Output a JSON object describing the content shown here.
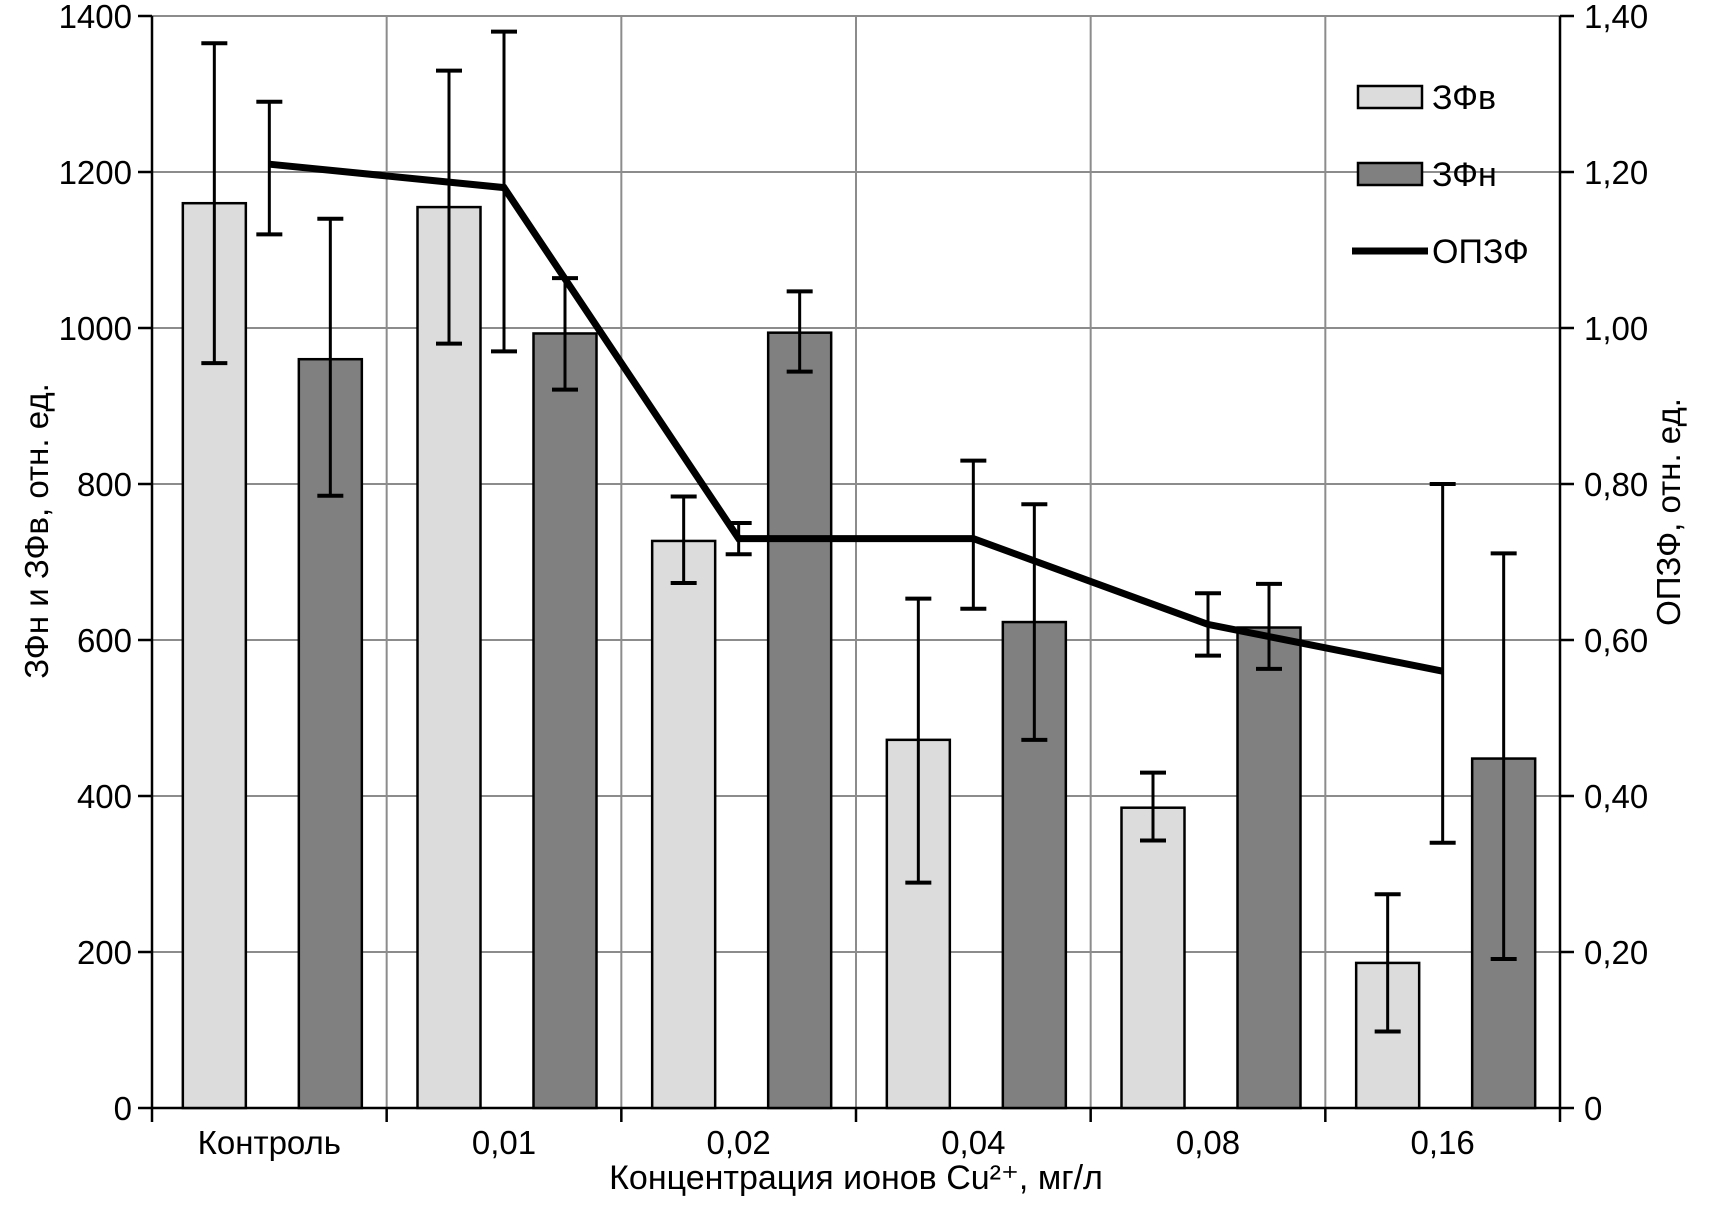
{
  "figure": {
    "background": "#ffffff",
    "plot_border_color": "#8c8c8c",
    "axis_color": "#000000",
    "gridline_color": "#8c8c8c"
  },
  "chart_data": {
    "type": "bar",
    "subtype": "grouped-bars-with-line-dual-axis",
    "grid": true,
    "legend_position": "top-right-inside",
    "categories": [
      "Контроль",
      "0,01",
      "0,02",
      "0,04",
      "0,08",
      "0,16"
    ],
    "x_axis": {
      "label": "Концентрация ионов Cu²⁺, мг/л"
    },
    "left_axis": {
      "label": "ЗФн и ЗФв, отн. ед.",
      "min": 0,
      "max": 1400,
      "step": 200,
      "tick_values": [
        0,
        200,
        400,
        600,
        800,
        1000,
        1200,
        1400
      ],
      "tick_labels": [
        "0",
        "200",
        "400",
        "600",
        "800",
        "1000",
        "1200",
        "1400"
      ]
    },
    "right_axis": {
      "label": "ОПЗФ, отн. ед.",
      "min": 0,
      "max": 1.4,
      "step": 0.2,
      "tick_values": [
        0,
        0.2,
        0.4,
        0.6,
        0.8,
        1.0,
        1.2,
        1.4
      ],
      "tick_labels": [
        "0",
        "0,20",
        "0,40",
        "0,60",
        "0,80",
        "1,00",
        "1,20",
        "1,40"
      ]
    },
    "bar_series": [
      {
        "name": "ЗФв",
        "color": "#dcdcdc",
        "axis": "left",
        "values": [
          1160,
          1155,
          727,
          472,
          385,
          186
        ],
        "err_low": [
          955,
          980,
          673,
          289,
          343,
          98
        ],
        "err_high": [
          1365,
          1330,
          784,
          653,
          430,
          274
        ]
      },
      {
        "name": "ЗФн",
        "color": "#808080",
        "axis": "left",
        "values": [
          960,
          993,
          994,
          623,
          616,
          448
        ],
        "err_low": [
          785,
          921,
          944,
          472,
          563,
          191
        ],
        "err_high": [
          1140,
          1064,
          1047,
          774,
          672,
          711
        ]
      }
    ],
    "line_series": [
      {
        "name": "ОПЗФ",
        "color": "#000000",
        "axis": "right",
        "values": [
          1.21,
          1.18,
          0.73,
          0.73,
          0.62,
          0.56
        ],
        "err_low": [
          1.12,
          0.97,
          0.71,
          0.64,
          0.58,
          0.34
        ],
        "err_high": [
          1.29,
          1.38,
          0.75,
          0.83,
          0.66,
          0.8
        ]
      }
    ],
    "legend": [
      "ЗФв",
      "ЗФн",
      "ОПЗФ"
    ]
  }
}
